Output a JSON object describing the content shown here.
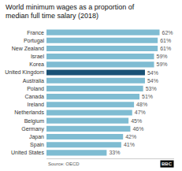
{
  "chart_data": {
    "type": "bar",
    "orientation": "horizontal",
    "title": "World minimum wages as a proportion of\nmedian full time salary (2018)",
    "categories": [
      "France",
      "Portugal",
      "New Zealand",
      "Israel",
      "Korea",
      "United Kingdom",
      "Australia",
      "Poland",
      "Canada",
      "Ireland",
      "Netherlands",
      "Belgium",
      "Germany",
      "Japan",
      "Spain",
      "United States"
    ],
    "values": [
      62,
      61,
      61,
      59,
      59,
      54,
      54,
      53,
      51,
      48,
      47,
      45,
      46,
      42,
      41,
      33
    ],
    "value_labels": [
      "62%",
      "61%",
      "61%",
      "59%",
      "59%",
      "54%",
      "54%",
      "53%",
      "51%",
      "48%",
      "47%",
      "45%",
      "46%",
      "42%",
      "41%",
      "33%"
    ],
    "data_labels": true,
    "colors": [
      "#7fbcd2",
      "#7fbcd2",
      "#7fbcd2",
      "#7fbcd2",
      "#7fbcd2",
      "#1a5276",
      "#7fbcd2",
      "#7fbcd2",
      "#7fbcd2",
      "#7fbcd2",
      "#7fbcd2",
      "#7fbcd2",
      "#7fbcd2",
      "#7fbcd2",
      "#7fbcd2",
      "#7fbcd2"
    ],
    "xlim": [
      0,
      70
    ],
    "xticks": [],
    "tick_labels": "y",
    "grid": false,
    "annotations": [
      "Source: OECD",
      "BBC"
    ]
  }
}
